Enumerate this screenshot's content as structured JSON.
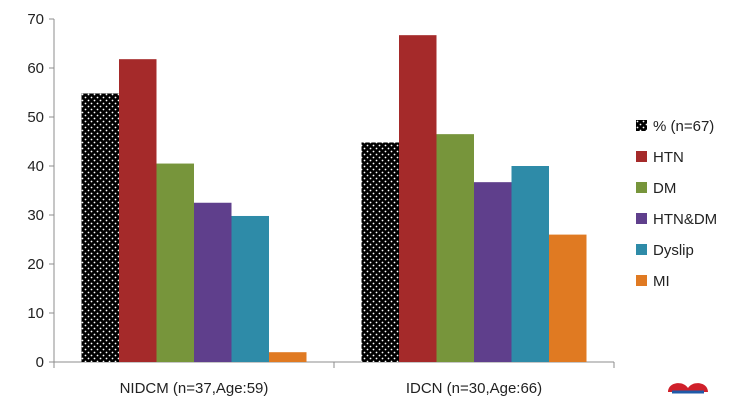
{
  "chart_data": {
    "type": "bar",
    "categories": [
      "NIDCM (n=37,Age:59)",
      "IDCN (n=30,Age:66)"
    ],
    "series": [
      {
        "name": "% (n=67)",
        "values": [
          54.8,
          44.8
        ],
        "color": "#000000",
        "pattern": "white-dots"
      },
      {
        "name": "HTN",
        "values": [
          61.8,
          66.7
        ],
        "color": "#a52a2a"
      },
      {
        "name": "DM",
        "values": [
          40.5,
          46.5
        ],
        "color": "#77953b"
      },
      {
        "name": "HTN&DM",
        "values": [
          32.5,
          36.7
        ],
        "color": "#5f3f8c"
      },
      {
        "name": "Dyslip",
        "values": [
          29.8,
          40.0
        ],
        "color": "#2e8ba8"
      },
      {
        "name": "MI",
        "values": [
          2.0,
          26.0
        ],
        "color": "#e07a22"
      }
    ],
    "title": "",
    "xlabel": "",
    "ylabel": "",
    "ylim": [
      0,
      70
    ],
    "yticks": [
      0,
      10,
      20,
      30,
      40,
      50,
      60,
      70
    ],
    "grid": false,
    "legend_position": "right"
  }
}
